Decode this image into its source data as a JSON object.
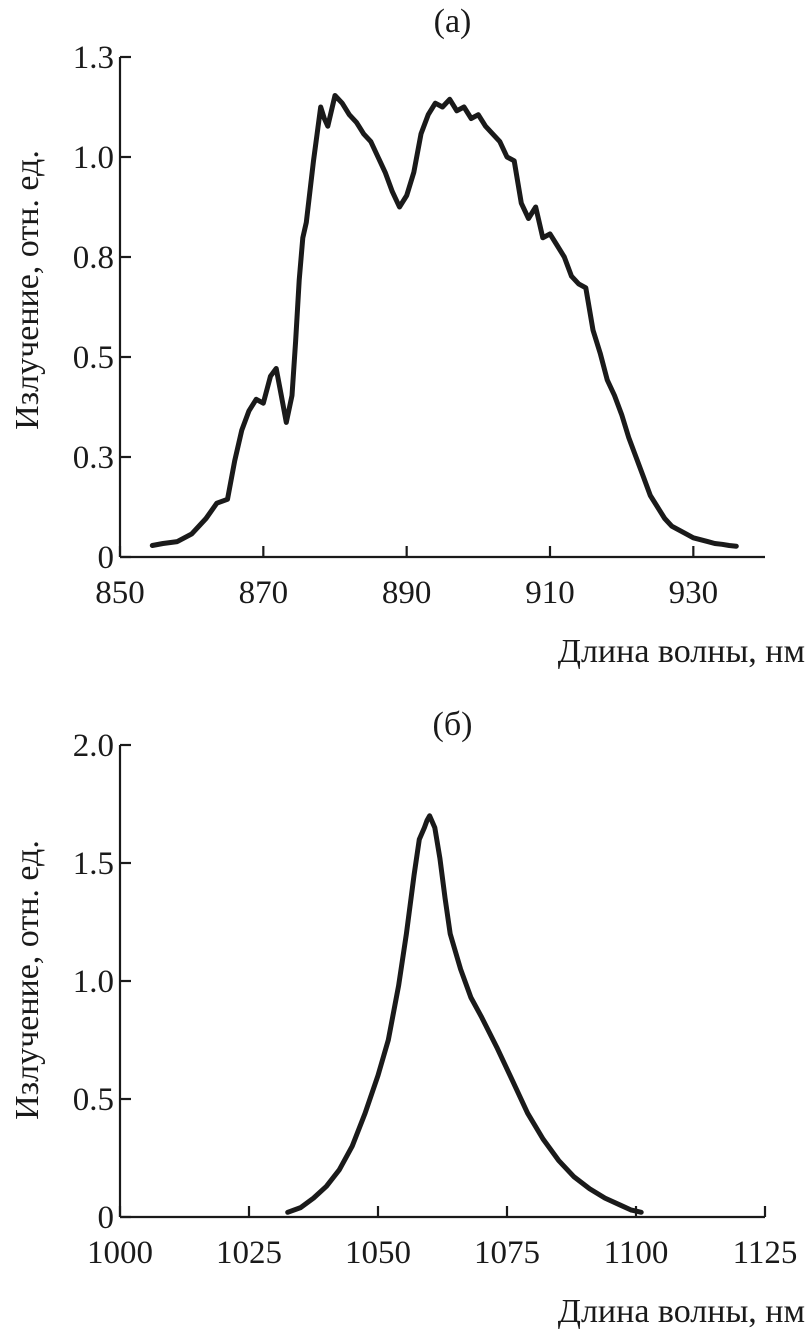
{
  "chart_data": [
    {
      "type": "line",
      "title": "(а)",
      "xlabel": "Длина волны, нм",
      "ylabel": "Излучение, отн. ед.",
      "xlim": [
        850,
        940
      ],
      "ylim": [
        0,
        1.3
      ],
      "grid": false,
      "x_ticks": [
        850,
        870,
        890,
        910,
        930
      ],
      "x_tick_labels": [
        "850",
        "870",
        "890",
        "910",
        "930"
      ],
      "y_ticks": [
        0,
        0.26,
        0.52,
        0.78,
        1.04,
        1.3
      ],
      "y_tick_labels": [
        "0",
        "0.3",
        "0.5",
        "0.8",
        "1.0",
        "1.3"
      ],
      "series": [
        {
          "x": [
            854.5,
            856,
            858,
            860,
            862,
            863.5,
            865,
            866,
            867,
            868,
            869,
            870,
            871,
            871.8,
            872.5,
            873.2,
            874,
            874.5,
            875,
            875.5,
            876,
            876.5,
            877,
            877.5,
            878,
            878.5,
            879,
            880,
            881,
            882,
            883,
            884,
            885,
            886,
            887,
            888,
            889,
            890,
            891,
            892,
            893,
            894,
            895,
            896,
            897,
            898,
            899,
            900,
            901,
            902,
            903,
            904,
            905,
            906,
            907,
            908,
            909,
            910,
            911,
            912,
            913,
            914,
            915,
            916,
            917,
            918,
            919,
            920,
            921,
            922,
            923,
            924,
            925,
            926,
            927,
            928,
            929,
            930,
            931,
            932,
            933,
            934,
            935,
            936
          ],
          "y": [
            0.03,
            0.035,
            0.04,
            0.06,
            0.1,
            0.14,
            0.15,
            0.25,
            0.33,
            0.38,
            0.41,
            0.4,
            0.47,
            0.49,
            0.42,
            0.35,
            0.42,
            0.56,
            0.72,
            0.83,
            0.87,
            0.95,
            1.03,
            1.1,
            1.17,
            1.14,
            1.12,
            1.2,
            1.18,
            1.15,
            1.13,
            1.1,
            1.08,
            1.04,
            1.0,
            0.95,
            0.91,
            0.94,
            1.0,
            1.1,
            1.15,
            1.18,
            1.17,
            1.19,
            1.16,
            1.17,
            1.14,
            1.15,
            1.12,
            1.1,
            1.08,
            1.04,
            1.03,
            0.92,
            0.88,
            0.91,
            0.83,
            0.84,
            0.81,
            0.78,
            0.73,
            0.71,
            0.7,
            0.59,
            0.53,
            0.46,
            0.42,
            0.37,
            0.31,
            0.26,
            0.21,
            0.16,
            0.13,
            0.1,
            0.08,
            0.07,
            0.06,
            0.05,
            0.045,
            0.04,
            0.035,
            0.033,
            0.03,
            0.028
          ]
        }
      ]
    },
    {
      "type": "line",
      "title": "(б)",
      "xlabel": "Длина волны, нм",
      "ylabel": "Излучение, отн. ед.",
      "xlim": [
        1000,
        1125
      ],
      "ylim": [
        0,
        2.0
      ],
      "grid": false,
      "x_ticks": [
        1000,
        1025,
        1050,
        1075,
        1100,
        1125
      ],
      "x_tick_labels": [
        "1000",
        "1025",
        "1050",
        "1075",
        "1100",
        "1125"
      ],
      "y_ticks": [
        0,
        0.5,
        1.0,
        1.5,
        2.0
      ],
      "y_tick_labels": [
        "0",
        "0.5",
        "1.0",
        "1.5",
        "2.0"
      ],
      "series": [
        {
          "x": [
            1032.5,
            1035,
            1037.5,
            1040,
            1042.5,
            1045,
            1047.5,
            1050,
            1052,
            1054,
            1055.5,
            1057,
            1058,
            1059,
            1059.5,
            1060,
            1061,
            1062,
            1063,
            1064,
            1066,
            1068,
            1070,
            1073,
            1076,
            1079,
            1082,
            1085,
            1088,
            1091,
            1094,
            1097,
            1099,
            1101
          ],
          "y": [
            0.02,
            0.04,
            0.08,
            0.13,
            0.2,
            0.3,
            0.44,
            0.6,
            0.75,
            0.98,
            1.2,
            1.45,
            1.6,
            1.65,
            1.68,
            1.7,
            1.65,
            1.52,
            1.35,
            1.2,
            1.05,
            0.93,
            0.85,
            0.72,
            0.58,
            0.44,
            0.33,
            0.24,
            0.17,
            0.12,
            0.08,
            0.05,
            0.03,
            0.02
          ]
        }
      ]
    }
  ]
}
